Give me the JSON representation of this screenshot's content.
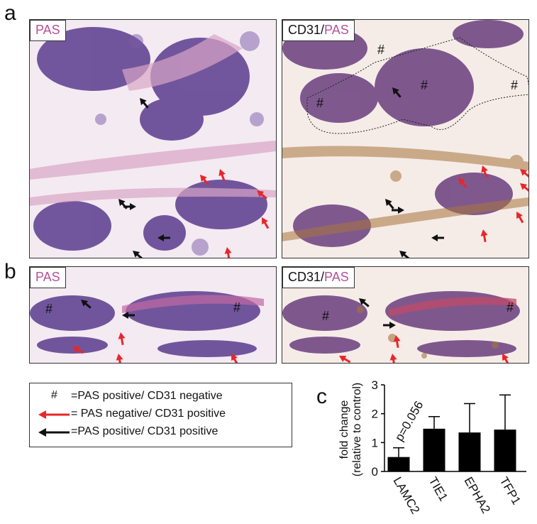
{
  "figure": {
    "panel_a_letter": "a",
    "panel_b_letter": "b",
    "panel_c_letter": "c",
    "panels": {
      "a_left": {
        "label_main": "PAS",
        "label_sep": "",
        "label_stain": ""
      },
      "a_right": {
        "label_main": "CD31",
        "label_sep": "/",
        "label_stain": "PAS"
      },
      "b_left": {
        "label_main": "PAS",
        "label_sep": "",
        "label_stain": ""
      },
      "b_right": {
        "label_main": "CD31",
        "label_sep": "/",
        "label_stain": "PAS"
      }
    },
    "hash_mark": "#"
  },
  "legend": {
    "items": [
      {
        "symbol": "#",
        "text": "=PAS positive/ CD31 negative"
      },
      {
        "symbol": "red-arrow-icon",
        "text": "= PAS negative/ CD31 positive"
      },
      {
        "symbol": "black-arrow-icon",
        "text": "=PAS positive/ CD31 positive"
      }
    ]
  },
  "colors": {
    "pas_magenta": "#b5509a",
    "red_arrow": "#e8262a",
    "black_arrow": "#111111",
    "bar_fill": "#000000",
    "tissue_purple": "#5b3c8e",
    "tissue_pink": "#d9a5c6",
    "cd31_brown": "#a8743c"
  },
  "chart_data": {
    "type": "bar",
    "categories": [
      "LAMC2",
      "TIE1",
      "EPHA2",
      "TFP1"
    ],
    "values": [
      0.5,
      1.48,
      1.35,
      1.45
    ],
    "errors": [
      0.32,
      0.42,
      1.0,
      1.2
    ],
    "annotation": {
      "category": "LAMC2",
      "text": "p=0.056"
    },
    "title": "",
    "xlabel": "",
    "ylabel_line1": "fold change",
    "ylabel_line2": "(relative to control)",
    "ylim": [
      0,
      3
    ],
    "yticks": [
      "0",
      "1",
      "2",
      "3"
    ]
  }
}
